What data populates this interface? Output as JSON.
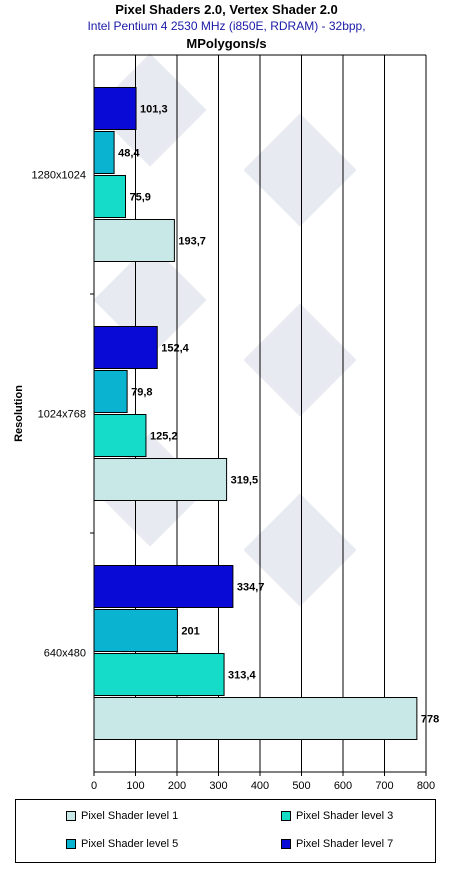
{
  "title": "Pixel Shaders 2.0, Vertex Shader 2.0",
  "subtitle": "Intel Pentium 4 2530 MHz (i850E, RDRAM) - 32bpp,",
  "unit": "MPolygons/s",
  "chart_data": {
    "type": "bar",
    "orientation": "horizontal",
    "ylabel": "Resolution",
    "xlim": [
      0,
      800
    ],
    "xticks": [
      0,
      100,
      200,
      300,
      400,
      500,
      600,
      700,
      800
    ],
    "grid": true,
    "legend_position": "bottom",
    "categories": [
      "1280x1024",
      "1024x768",
      "640x480"
    ],
    "series": [
      {
        "name": "Pixel Shader level 7",
        "color": "#0a0ad6",
        "values": [
          101.3,
          152.4,
          334.7
        ],
        "labels": [
          "101,3",
          "152,4",
          "334,7"
        ]
      },
      {
        "name": "Pixel Shader level 5",
        "color": "#0ab4d0",
        "values": [
          48.4,
          79.8,
          201
        ],
        "labels": [
          "48,4",
          "79,8",
          "201"
        ]
      },
      {
        "name": "Pixel Shader level 3",
        "color": "#14dcc8",
        "values": [
          75.9,
          125.2,
          313.4
        ],
        "labels": [
          "75,9",
          "125,2",
          "313,4"
        ]
      },
      {
        "name": "Pixel Shader level 1",
        "color": "#c8e8e8",
        "values": [
          193.7,
          319.5,
          778
        ],
        "labels": [
          "193,7",
          "319,5",
          "778"
        ]
      }
    ],
    "legend_order": [
      "Pixel Shader level 1",
      "Pixel Shader level 3",
      "Pixel Shader level 5",
      "Pixel Shader level 7"
    ]
  }
}
